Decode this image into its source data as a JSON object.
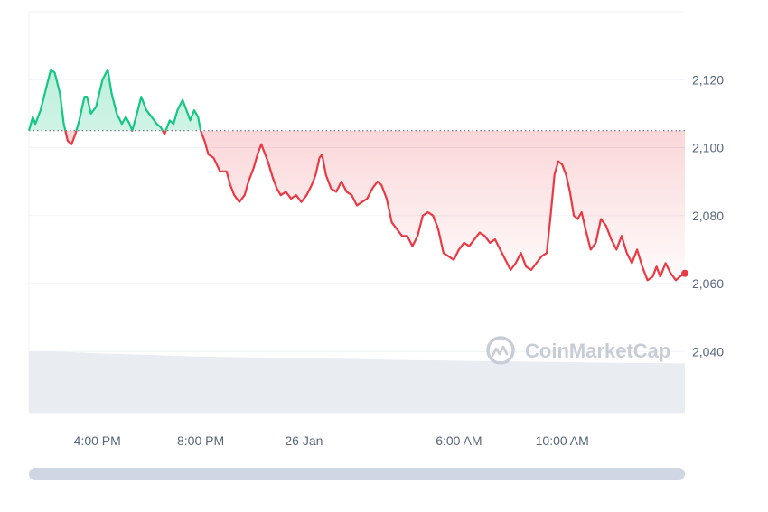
{
  "watermark": {
    "brand": "CoinMarketCap"
  },
  "colors": {
    "up": "#16c784",
    "down": "#ea3943",
    "grid": "#eff2f5",
    "volume": "#e9ecf1",
    "axis_text": "#58667e",
    "baseline": "#6b7280",
    "scrollbar": "#cfd6e4"
  },
  "chart_data": {
    "type": "area",
    "title": "",
    "xlabel": "",
    "ylabel": "",
    "ylim": [
      2022,
      2140
    ],
    "y_ticks": [
      "2,040",
      "2,060",
      "2,080",
      "2,100",
      "2,120"
    ],
    "y_tick_values": [
      2040,
      2060,
      2080,
      2100,
      2120
    ],
    "x_ticks": [
      "4:00 PM",
      "8:00 PM",
      "26 Jan",
      "6:00 AM",
      "10:00 AM"
    ],
    "x_tick_values": [
      4.0,
      8.0,
      12.0,
      18.0,
      22.0
    ],
    "x_unit": "hours after 12:00 PM",
    "baseline": 2105,
    "grid": true,
    "series": [
      {
        "name": "",
        "values": [
          [
            1.35,
            2105
          ],
          [
            1.5,
            2109
          ],
          [
            1.6,
            2107
          ],
          [
            1.8,
            2111
          ],
          [
            2.0,
            2117
          ],
          [
            2.2,
            2123
          ],
          [
            2.35,
            2122
          ],
          [
            2.55,
            2116
          ],
          [
            2.7,
            2107
          ],
          [
            2.85,
            2102
          ],
          [
            3.0,
            2101
          ],
          [
            3.15,
            2104
          ],
          [
            3.3,
            2108
          ],
          [
            3.5,
            2115
          ],
          [
            3.6,
            2115
          ],
          [
            3.75,
            2110
          ],
          [
            3.95,
            2112
          ],
          [
            4.2,
            2120
          ],
          [
            4.4,
            2123
          ],
          [
            4.55,
            2116
          ],
          [
            4.75,
            2110
          ],
          [
            4.95,
            2107
          ],
          [
            5.1,
            2109
          ],
          [
            5.25,
            2107
          ],
          [
            5.35,
            2105
          ],
          [
            5.5,
            2109
          ],
          [
            5.7,
            2115
          ],
          [
            5.9,
            2111
          ],
          [
            6.1,
            2109
          ],
          [
            6.3,
            2107
          ],
          [
            6.45,
            2106
          ],
          [
            6.6,
            2104
          ],
          [
            6.8,
            2108
          ],
          [
            6.95,
            2107
          ],
          [
            7.1,
            2111
          ],
          [
            7.3,
            2114
          ],
          [
            7.45,
            2111
          ],
          [
            7.6,
            2108
          ],
          [
            7.75,
            2111
          ],
          [
            7.9,
            2109
          ],
          [
            8.0,
            2105
          ],
          [
            8.15,
            2102
          ],
          [
            8.3,
            2098
          ],
          [
            8.5,
            2097
          ],
          [
            8.75,
            2093
          ],
          [
            9.0,
            2093
          ],
          [
            9.15,
            2089
          ],
          [
            9.3,
            2086
          ],
          [
            9.5,
            2084
          ],
          [
            9.7,
            2086
          ],
          [
            9.85,
            2090
          ],
          [
            10.05,
            2094
          ],
          [
            10.2,
            2098
          ],
          [
            10.35,
            2101
          ],
          [
            10.45,
            2099
          ],
          [
            10.6,
            2096
          ],
          [
            10.8,
            2091
          ],
          [
            10.95,
            2088
          ],
          [
            11.1,
            2086
          ],
          [
            11.3,
            2087
          ],
          [
            11.5,
            2085
          ],
          [
            11.7,
            2086
          ],
          [
            11.9,
            2084
          ],
          [
            12.1,
            2086
          ],
          [
            12.3,
            2089
          ],
          [
            12.45,
            2092
          ],
          [
            12.6,
            2097
          ],
          [
            12.7,
            2098
          ],
          [
            12.85,
            2092
          ],
          [
            13.05,
            2088
          ],
          [
            13.25,
            2087
          ],
          [
            13.45,
            2090
          ],
          [
            13.65,
            2087
          ],
          [
            13.85,
            2086
          ],
          [
            14.05,
            2083
          ],
          [
            14.25,
            2084
          ],
          [
            14.45,
            2085
          ],
          [
            14.65,
            2088
          ],
          [
            14.85,
            2090
          ],
          [
            15.0,
            2089
          ],
          [
            15.2,
            2085
          ],
          [
            15.4,
            2078
          ],
          [
            15.6,
            2076
          ],
          [
            15.8,
            2074
          ],
          [
            16.0,
            2074
          ],
          [
            16.2,
            2071
          ],
          [
            16.4,
            2074
          ],
          [
            16.6,
            2080
          ],
          [
            16.8,
            2081
          ],
          [
            17.0,
            2080
          ],
          [
            17.2,
            2076
          ],
          [
            17.4,
            2069
          ],
          [
            17.6,
            2068
          ],
          [
            17.8,
            2067
          ],
          [
            18.0,
            2070
          ],
          [
            18.2,
            2072
          ],
          [
            18.4,
            2071
          ],
          [
            18.6,
            2073
          ],
          [
            18.8,
            2075
          ],
          [
            19.0,
            2074
          ],
          [
            19.2,
            2072
          ],
          [
            19.4,
            2073
          ],
          [
            19.6,
            2070
          ],
          [
            19.8,
            2067
          ],
          [
            20.0,
            2064
          ],
          [
            20.2,
            2066
          ],
          [
            20.4,
            2069
          ],
          [
            20.6,
            2065
          ],
          [
            20.8,
            2064
          ],
          [
            21.0,
            2066
          ],
          [
            21.2,
            2068
          ],
          [
            21.4,
            2069
          ],
          [
            21.55,
            2080
          ],
          [
            21.7,
            2092
          ],
          [
            21.85,
            2096
          ],
          [
            22.0,
            2095
          ],
          [
            22.15,
            2092
          ],
          [
            22.3,
            2087
          ],
          [
            22.45,
            2080
          ],
          [
            22.6,
            2079
          ],
          [
            22.75,
            2081
          ],
          [
            22.9,
            2076
          ],
          [
            23.1,
            2070
          ],
          [
            23.3,
            2072
          ],
          [
            23.5,
            2079
          ],
          [
            23.7,
            2077
          ],
          [
            23.9,
            2073
          ],
          [
            24.1,
            2070
          ],
          [
            24.3,
            2074
          ],
          [
            24.5,
            2069
          ],
          [
            24.7,
            2066
          ],
          [
            24.9,
            2070
          ],
          [
            25.1,
            2065
          ],
          [
            25.3,
            2061
          ],
          [
            25.5,
            2062
          ],
          [
            25.65,
            2065
          ],
          [
            25.8,
            2062
          ],
          [
            26.0,
            2066
          ],
          [
            26.2,
            2063
          ],
          [
            26.4,
            2061
          ],
          [
            26.55,
            2062
          ],
          [
            26.75,
            2063
          ]
        ]
      }
    ],
    "volume": [
      [
        1.35,
        2040
      ],
      [
        2.5,
        2040
      ],
      [
        4.0,
        2039.5
      ],
      [
        6.0,
        2039
      ],
      [
        8.0,
        2038.5
      ],
      [
        10.0,
        2038.3
      ],
      [
        12.0,
        2038
      ],
      [
        14.0,
        2037.8
      ],
      [
        16.0,
        2037.5
      ],
      [
        18.0,
        2037.3
      ],
      [
        20.0,
        2037.1
      ],
      [
        22.0,
        2036.9
      ],
      [
        24.0,
        2036.7
      ],
      [
        26.75,
        2036.5
      ]
    ]
  }
}
